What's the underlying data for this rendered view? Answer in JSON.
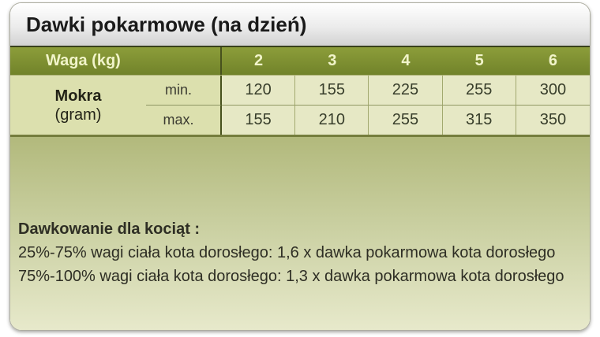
{
  "title": "Dawki pokarmowe (na dzień)",
  "chart_data": {
    "type": "table",
    "title": "Dawki pokarmowe (na dzień)",
    "weight_header": "Waga (kg)",
    "weight_columns": [
      "2",
      "3",
      "4",
      "5",
      "6"
    ],
    "row_group": {
      "line1": "Mokra",
      "line2": "(gram)"
    },
    "rows": [
      {
        "label": "min.",
        "values": [
          120,
          155,
          225,
          255,
          300
        ]
      },
      {
        "label": "max.",
        "values": [
          155,
          210,
          255,
          315,
          350
        ]
      }
    ],
    "notes": {
      "heading": "Dawkowanie dla kociąt :",
      "lines": [
        "25%-75% wagi ciała kota dorosłego: 1,6 x dawka pokarmowa kota dorosłego",
        "75%-100% wagi ciała kota dorosłego: 1,3 x dawka pokarmowa kota dorosłego"
      ]
    }
  },
  "colors": {
    "header_green": "#7d8f2e",
    "header_divider_dark": "#47511d",
    "header_text_cream": "#f1f4ca",
    "label_cell_bg": "#dce0ae",
    "value_cell_bg": "#e6e8c5",
    "body_gradient_top": "#b2b97c",
    "body_gradient_bottom": "#e7e9cb",
    "title_bar_gradient_bottom": "#d2d2d2"
  }
}
